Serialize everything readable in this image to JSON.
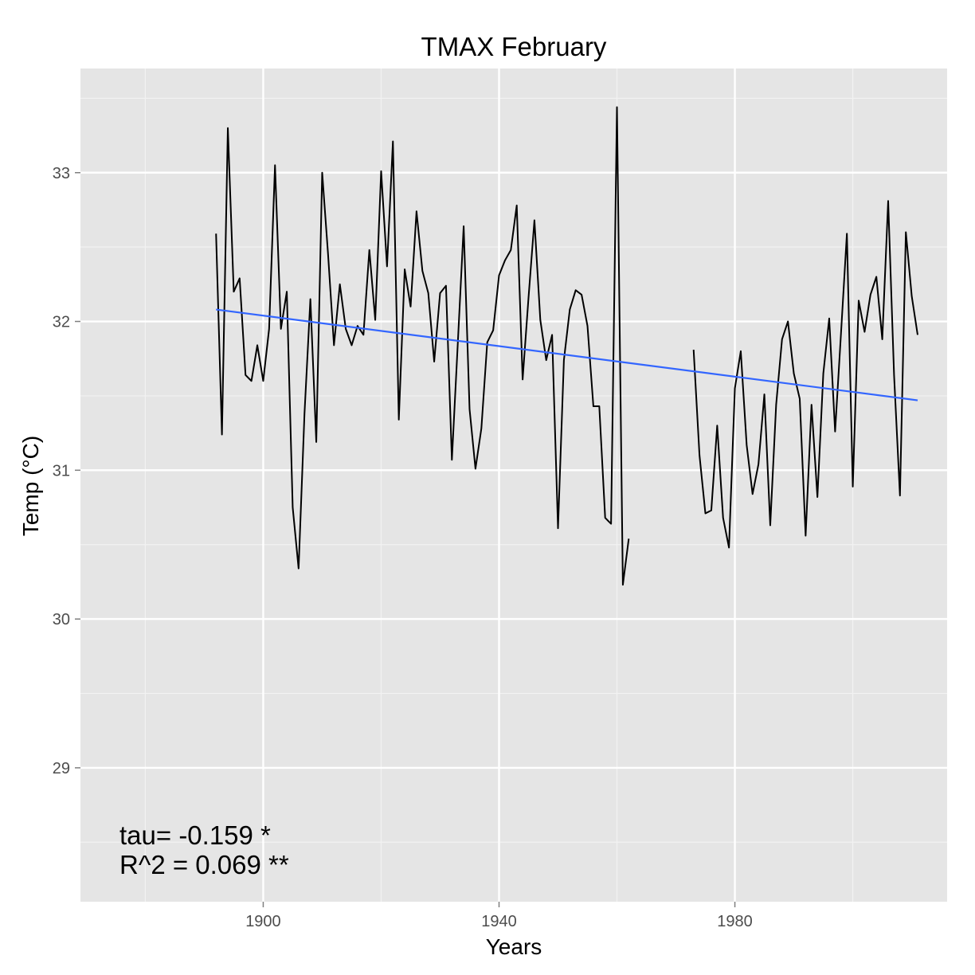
{
  "chart_data": {
    "type": "line",
    "title": "TMAX February",
    "xlabel": "Years",
    "ylabel": "Temp (°C)",
    "xlim": [
      1869,
      2016
    ],
    "ylim": [
      28.1,
      33.7
    ],
    "x_ticks": [
      1900,
      1940,
      1980
    ],
    "y_ticks": [
      29,
      30,
      31,
      32,
      33
    ],
    "grid": true,
    "background": "#e5e5e5",
    "series": [
      {
        "color": "#000000",
        "x": [
          1892,
          1893,
          1894,
          1895,
          1896,
          1897,
          1898,
          1899,
          1900,
          1901,
          1902,
          1903,
          1904,
          1905,
          1906,
          1907,
          1908,
          1909,
          1910,
          1911,
          1912,
          1913,
          1914,
          1915,
          1916,
          1917,
          1918,
          1919,
          1920,
          1921,
          1922,
          1923,
          1924,
          1925,
          1926,
          1927,
          1928,
          1929,
          1930,
          1931,
          1932,
          1933,
          1934,
          1935,
          1936,
          1937,
          1938,
          1939,
          1940,
          1941,
          1942,
          1943,
          1944,
          1945,
          1946,
          1947,
          1948,
          1949,
          1950,
          1951,
          1952,
          1953,
          1954,
          1955,
          1956,
          1957,
          1958,
          1959,
          1960,
          1961,
          1962,
          null,
          1973,
          1974,
          1975,
          1976,
          1977,
          1978,
          1979,
          1980,
          1981,
          1982,
          1983,
          1984,
          1985,
          1986,
          1987,
          1988,
          1989,
          1990,
          1991,
          1992,
          1993,
          1994,
          1995,
          1996,
          1997,
          1998,
          1999,
          2000,
          2001,
          2002,
          2003,
          2004,
          2005,
          2006,
          2007,
          2008,
          2009,
          2010,
          2011
        ],
        "y": [
          32.59,
          31.24,
          33.3,
          32.2,
          32.29,
          31.64,
          31.6,
          31.84,
          31.6,
          31.95,
          33.05,
          31.95,
          32.2,
          30.75,
          30.34,
          31.38,
          32.15,
          31.19,
          33.0,
          32.45,
          31.84,
          32.25,
          31.95,
          31.84,
          31.97,
          31.91,
          32.48,
          32.01,
          33.01,
          32.37,
          33.21,
          31.34,
          32.35,
          32.1,
          32.74,
          32.34,
          32.19,
          31.73,
          32.19,
          32.24,
          31.07,
          31.85,
          32.64,
          31.41,
          31.01,
          31.28,
          31.86,
          31.94,
          32.31,
          32.41,
          32.48,
          32.78,
          31.61,
          32.16,
          32.68,
          32.01,
          31.74,
          31.91,
          30.61,
          31.74,
          32.08,
          32.21,
          32.18,
          31.97,
          31.43,
          31.43,
          30.68,
          30.64,
          33.44,
          30.23,
          30.54,
          null,
          31.81,
          31.1,
          30.71,
          30.73,
          31.3,
          30.68,
          30.48,
          31.55,
          31.8,
          31.17,
          30.84,
          31.04,
          31.51,
          30.63,
          31.44,
          31.88,
          32.0,
          31.65,
          31.48,
          30.56,
          31.44,
          30.82,
          31.65,
          32.02,
          31.26,
          31.92,
          32.59,
          30.89,
          32.14,
          31.93,
          32.18,
          32.3,
          31.88,
          32.81,
          31.64,
          30.83,
          32.6,
          32.17,
          31.91
        ]
      },
      {
        "color": "#3366ff",
        "x": [
          1892,
          2011
        ],
        "y": [
          32.08,
          31.47
        ]
      }
    ],
    "annotations": [
      "tau= -0.159 *",
      "R^2 =  0.069 **"
    ]
  }
}
